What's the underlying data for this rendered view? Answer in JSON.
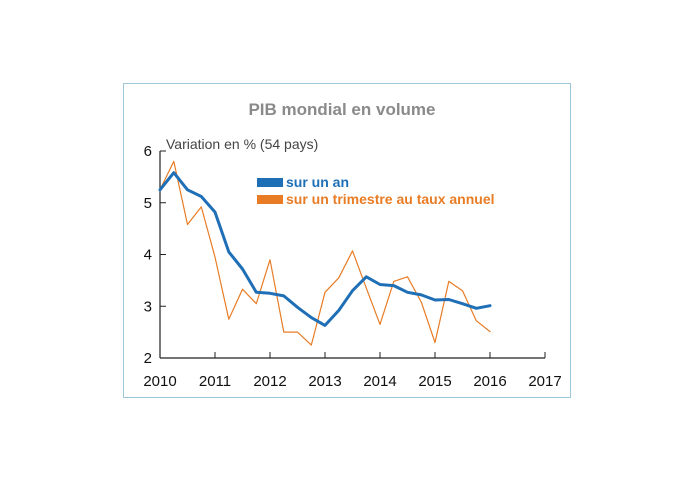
{
  "chart_data": {
    "type": "line",
    "title": "PIB mondial en volume",
    "ylabel": "Variation en % (54 pays)",
    "xlabel": "",
    "xlim": [
      2010,
      2017
    ],
    "ylim": [
      2,
      6
    ],
    "x_ticks": [
      "2010",
      "2011",
      "2012",
      "2013",
      "2014",
      "2015",
      "2016",
      "2017"
    ],
    "y_ticks": [
      "2",
      "3",
      "4",
      "5",
      "6"
    ],
    "grid": false,
    "legend_position": "top-center",
    "series": [
      {
        "name": "sur un an",
        "color": "#1f6fb7",
        "x": [
          2010.0,
          2010.25,
          2010.5,
          2010.75,
          2011.0,
          2011.25,
          2011.5,
          2011.75,
          2012.0,
          2012.25,
          2012.5,
          2012.75,
          2013.0,
          2013.25,
          2013.5,
          2013.75,
          2014.0,
          2014.25,
          2014.5,
          2014.75,
          2015.0,
          2015.25,
          2015.5,
          2015.75,
          2016.0
        ],
        "values": [
          5.25,
          5.58,
          5.25,
          5.12,
          4.82,
          4.05,
          3.72,
          3.27,
          3.25,
          3.2,
          2.98,
          2.78,
          2.63,
          2.92,
          3.3,
          3.57,
          3.42,
          3.4,
          3.27,
          3.22,
          3.12,
          3.13,
          3.05,
          2.96,
          3.01
        ]
      },
      {
        "name": "sur un trimestre au taux annuel",
        "color": "#e87c25",
        "x": [
          2010.0,
          2010.25,
          2010.5,
          2010.75,
          2011.0,
          2011.25,
          2011.5,
          2011.75,
          2012.0,
          2012.25,
          2012.5,
          2012.75,
          2013.0,
          2013.25,
          2013.5,
          2013.75,
          2014.0,
          2014.25,
          2014.5,
          2014.75,
          2015.0,
          2015.25,
          2015.5,
          2015.75,
          2016.0
        ],
        "values": [
          5.25,
          5.8,
          4.58,
          4.92,
          3.95,
          2.75,
          3.33,
          3.05,
          3.9,
          2.5,
          2.5,
          2.25,
          3.27,
          3.55,
          4.07,
          3.35,
          2.65,
          3.48,
          3.57,
          3.08,
          2.3,
          3.48,
          3.3,
          2.72,
          2.51
        ]
      }
    ]
  }
}
